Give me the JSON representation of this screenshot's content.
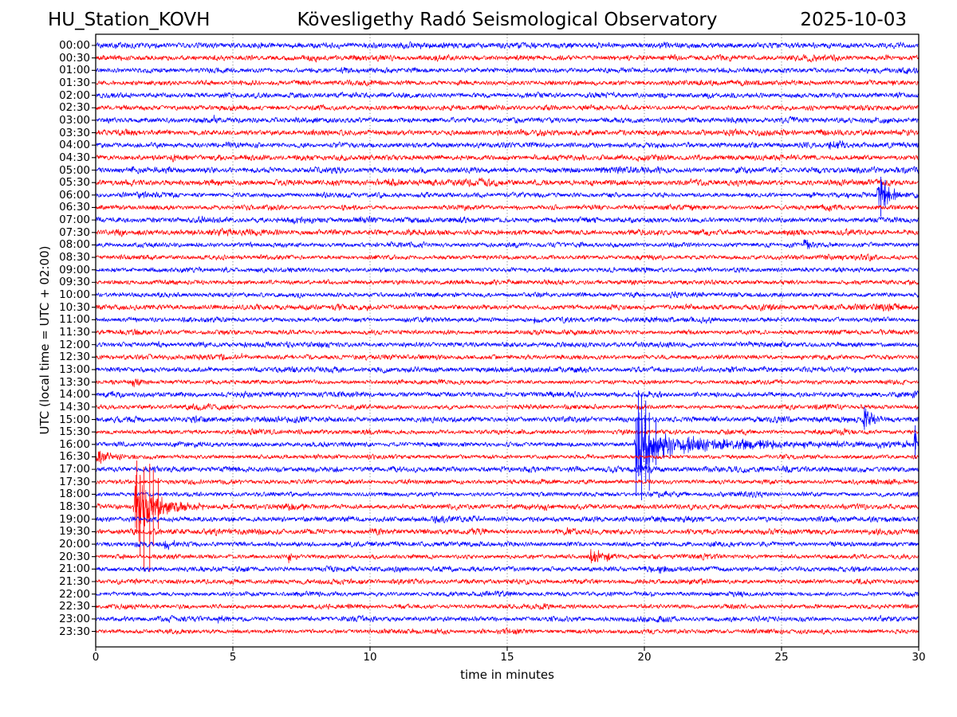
{
  "header": {
    "station": "HU_Station_KOVH",
    "observatory": "Kövesligethy Radó Seismological Observatory",
    "date": "2025-10-03"
  },
  "chart_data": {
    "type": "line",
    "subtype": "seismogram-helicorder",
    "title": "Kövesligethy Radó Seismological Observatory",
    "station": "HU_Station_KOVH",
    "date": "2025-10-03",
    "xlabel": "time in minutes",
    "ylabel": "UTC (local time = UTC + 02:00)",
    "xlim": [
      0,
      30
    ],
    "x_ticks": [
      0,
      5,
      10,
      15,
      20,
      25,
      30
    ],
    "grid": "vertical dotted gridlines every 5 minutes",
    "minutes_per_row": 30,
    "rows": 48,
    "colors": {
      "blue": "#0000ff",
      "red": "#ff0000",
      "frame": "#000000",
      "grid": "#666666"
    },
    "base_noise_amp": 2.0,
    "traces": [
      {
        "label": "00:00",
        "color": "blue",
        "events": []
      },
      {
        "label": "00:30",
        "color": "red",
        "events": []
      },
      {
        "label": "01:00",
        "color": "blue",
        "events": []
      },
      {
        "label": "01:30",
        "color": "red",
        "events": []
      },
      {
        "label": "02:00",
        "color": "blue",
        "events": []
      },
      {
        "label": "02:30",
        "color": "red",
        "events": []
      },
      {
        "label": "03:00",
        "color": "blue",
        "events": [
          {
            "start": 4.25,
            "end": 4.75,
            "amp": 7,
            "tau": 0.13,
            "rise": 0.05
          }
        ]
      },
      {
        "label": "03:30",
        "color": "red",
        "events": []
      },
      {
        "label": "04:00",
        "color": "blue",
        "events": [
          {
            "start": 26.6,
            "end": 28.3,
            "amp": 5,
            "tau": 0.7,
            "rise": 0.2
          }
        ]
      },
      {
        "label": "04:30",
        "color": "red",
        "events": [
          {
            "start": 2.65,
            "end": 3.9,
            "amp": 4,
            "tau": 0.6,
            "rise": 0.15
          }
        ]
      },
      {
        "label": "05:00",
        "color": "blue",
        "events": []
      },
      {
        "label": "05:30",
        "color": "red",
        "events": []
      },
      {
        "label": "06:00",
        "color": "blue",
        "events": [
          {
            "start": 28.45,
            "end": 29.95,
            "amp": 22,
            "tau": 0.45,
            "rise": 0.12
          }
        ],
        "spikes": [
          {
            "t": 28.62,
            "up": 23,
            "down": 27
          },
          {
            "t": 28.78,
            "up": 19,
            "down": 16
          }
        ]
      },
      {
        "label": "06:30",
        "color": "red",
        "events": []
      },
      {
        "label": "07:00",
        "color": "blue",
        "events": []
      },
      {
        "label": "07:30",
        "color": "red",
        "events": []
      },
      {
        "label": "08:00",
        "color": "blue",
        "events": [
          {
            "start": 25.7,
            "end": 27.3,
            "amp": 6,
            "tau": 0.5,
            "rise": 0.15
          }
        ]
      },
      {
        "label": "08:30",
        "color": "red",
        "events": []
      },
      {
        "label": "09:00",
        "color": "blue",
        "events": []
      },
      {
        "label": "09:30",
        "color": "red",
        "events": []
      },
      {
        "label": "10:00",
        "color": "blue",
        "events": []
      },
      {
        "label": "10:30",
        "color": "red",
        "events": []
      },
      {
        "label": "11:00",
        "color": "blue",
        "events": [
          {
            "start": 15.95,
            "end": 16.3,
            "amp": 7,
            "tau": 0.1,
            "rise": 0.04
          }
        ]
      },
      {
        "label": "11:30",
        "color": "red",
        "events": []
      },
      {
        "label": "12:00",
        "color": "blue",
        "events": []
      },
      {
        "label": "12:30",
        "color": "red",
        "events": [
          {
            "start": 5.3,
            "end": 5.65,
            "amp": 6,
            "tau": 0.1,
            "rise": 0.04
          }
        ]
      },
      {
        "label": "13:00",
        "color": "blue",
        "events": []
      },
      {
        "label": "13:30",
        "color": "red",
        "events": [
          {
            "start": 1.3,
            "end": 1.6,
            "amp": 5,
            "tau": 0.1,
            "rise": 0.04
          }
        ]
      },
      {
        "label": "14:00",
        "color": "blue",
        "events": []
      },
      {
        "label": "14:30",
        "color": "red",
        "events": []
      },
      {
        "label": "15:00",
        "color": "blue",
        "events": [
          {
            "start": 27.95,
            "end": 29.4,
            "amp": 14,
            "tau": 0.35,
            "rise": 0.08
          }
        ],
        "spikes": [
          {
            "t": 28.02,
            "up": 16,
            "down": 13
          }
        ]
      },
      {
        "label": "15:30",
        "color": "red",
        "events": []
      },
      {
        "label": "16:00",
        "color": "blue",
        "events": [
          {
            "start": 19.62,
            "end": 21.8,
            "amp": 62,
            "tau": 0.55,
            "rise": 0.1
          },
          {
            "start": 20.3,
            "end": 30.0,
            "amp": 11,
            "tau": 4.5,
            "rise": 0.5
          },
          {
            "start": 29.8,
            "end": 30.0,
            "amp": 20,
            "tau": 0.12,
            "rise": 0.03
          }
        ],
        "spikes": [
          {
            "t": 19.7,
            "up": 30,
            "down": 64
          },
          {
            "t": 19.78,
            "up": 68,
            "down": 40
          },
          {
            "t": 19.9,
            "up": 62,
            "down": 70
          },
          {
            "t": 20.05,
            "up": 55,
            "down": 48
          },
          {
            "t": 20.18,
            "up": 40,
            "down": 58
          },
          {
            "t": 20.42,
            "up": 34,
            "down": 26
          },
          {
            "t": 29.87,
            "up": 24,
            "down": 18
          }
        ]
      },
      {
        "label": "16:30",
        "color": "red",
        "events": [
          {
            "start": 0.0,
            "end": 2.0,
            "amp": 9,
            "tau": 0.7,
            "rise": 0.02
          }
        ]
      },
      {
        "label": "17:00",
        "color": "blue",
        "events": []
      },
      {
        "label": "17:30",
        "color": "red",
        "events": []
      },
      {
        "label": "18:00",
        "color": "blue",
        "events": []
      },
      {
        "label": "18:30",
        "color": "red",
        "events": [
          {
            "start": 1.35,
            "end": 2.9,
            "amp": 55,
            "tau": 0.45,
            "rise": 0.12
          },
          {
            "start": 1.9,
            "end": 5.2,
            "amp": 12,
            "tau": 1.1,
            "rise": 0.2
          }
        ],
        "spikes": [
          {
            "t": 1.5,
            "up": 58,
            "down": 34
          },
          {
            "t": 1.62,
            "up": 40,
            "down": 62
          },
          {
            "t": 1.76,
            "up": 50,
            "down": 80
          },
          {
            "t": 1.97,
            "up": 54,
            "down": 82
          },
          {
            "t": 2.1,
            "up": 46,
            "down": 50
          },
          {
            "t": 2.28,
            "up": 36,
            "down": 28
          }
        ]
      },
      {
        "label": "19:00",
        "color": "blue",
        "events": []
      },
      {
        "label": "19:30",
        "color": "red",
        "events": []
      },
      {
        "label": "20:00",
        "color": "blue",
        "events": [
          {
            "start": 2.45,
            "end": 3.4,
            "amp": 8,
            "tau": 0.3,
            "rise": 0.06
          }
        ]
      },
      {
        "label": "20:30",
        "color": "red",
        "events": [
          {
            "start": 7.0,
            "end": 7.35,
            "amp": 8,
            "tau": 0.1,
            "rise": 0.04
          },
          {
            "start": 17.92,
            "end": 20.0,
            "amp": 14,
            "tau": 0.55,
            "rise": 0.12
          }
        ]
      },
      {
        "label": "21:00",
        "color": "blue",
        "events": [
          {
            "start": 20.45,
            "end": 21.5,
            "amp": 6,
            "tau": 0.35,
            "rise": 0.1
          }
        ]
      },
      {
        "label": "21:30",
        "color": "red",
        "events": []
      },
      {
        "label": "22:00",
        "color": "blue",
        "events": [
          {
            "start": 22.3,
            "end": 22.9,
            "amp": 4,
            "tau": 0.25,
            "rise": 0.08
          }
        ]
      },
      {
        "label": "22:30",
        "color": "red",
        "events": []
      },
      {
        "label": "23:00",
        "color": "blue",
        "events": [
          {
            "start": 4.35,
            "end": 5.25,
            "amp": 6,
            "tau": 0.3,
            "rise": 0.08
          }
        ]
      },
      {
        "label": "23:30",
        "color": "red",
        "events": []
      }
    ]
  }
}
